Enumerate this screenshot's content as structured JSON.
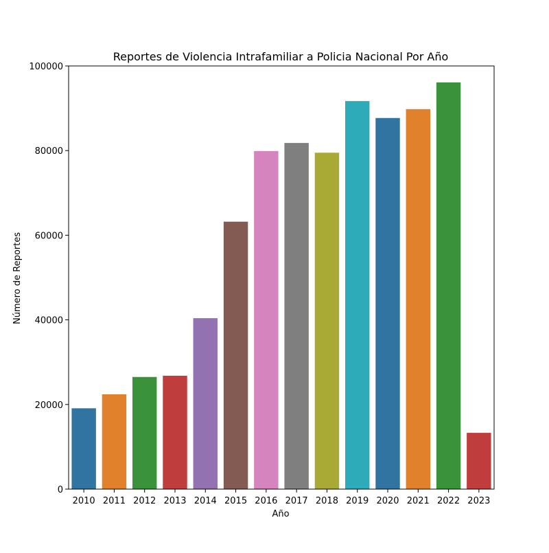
{
  "chart_data": {
    "type": "bar",
    "title": "Reportes de Violencia Intrafamiliar a Policia Nacional Por Año",
    "xlabel": "Año",
    "ylabel": "Número de Reportes",
    "categories": [
      "2010",
      "2011",
      "2012",
      "2013",
      "2014",
      "2015",
      "2016",
      "2017",
      "2018",
      "2019",
      "2020",
      "2021",
      "2022",
      "2023"
    ],
    "values": [
      19100,
      22400,
      26500,
      26800,
      40400,
      63200,
      79900,
      81800,
      79500,
      91700,
      87700,
      89800,
      96100,
      13300
    ],
    "colors": [
      "#3274a1",
      "#e1812c",
      "#3a923a",
      "#c03d3e",
      "#9372b2",
      "#845b53",
      "#d684bd",
      "#7f7f7f",
      "#a9aa35",
      "#2eabb8",
      "#3274a1",
      "#e1812c",
      "#3a923a",
      "#c03d3e"
    ],
    "ylim": [
      0,
      100000
    ],
    "yticks": [
      "0",
      "20000",
      "40000",
      "60000",
      "80000",
      "100000"
    ],
    "grid": false,
    "legend": "none"
  }
}
